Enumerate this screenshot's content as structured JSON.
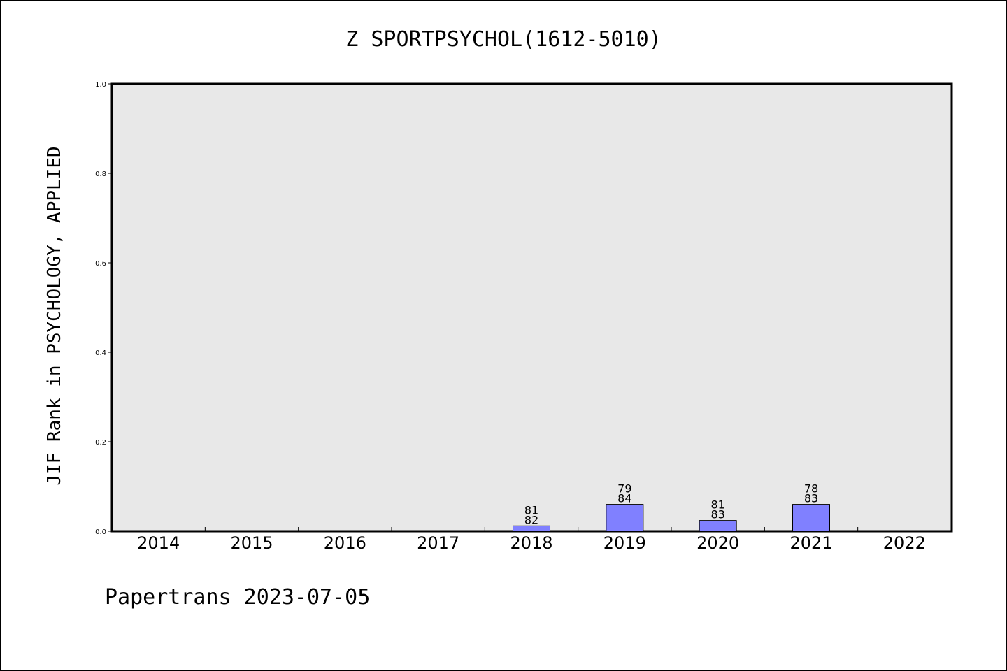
{
  "chart_data": {
    "type": "bar",
    "title": "Z SPORTPSYCHOL(1612-5010)",
    "ylabel": "JIF Rank in PSYCHOLOGY, APPLIED",
    "xlabel": "",
    "categories": [
      "2014",
      "2015",
      "2016",
      "2017",
      "2018",
      "2019",
      "2020",
      "2021",
      "2022"
    ],
    "values": [
      null,
      null,
      null,
      null,
      0.012,
      0.06,
      0.024,
      0.06,
      null
    ],
    "rank_labels": [
      null,
      null,
      null,
      null,
      "81",
      "79",
      "81",
      "78",
      null
    ],
    "total_labels": [
      null,
      null,
      null,
      null,
      "82",
      "84",
      "83",
      "83",
      null
    ],
    "ylim": [
      0,
      1
    ],
    "yticks": [
      "0.0",
      "0.2",
      "0.4",
      "0.6",
      "0.8",
      "1.0"
    ],
    "grid": false,
    "bar_color": "#8080ff",
    "plot_background": "#e8e8e8"
  },
  "footer": "Papertrans 2023-07-05"
}
